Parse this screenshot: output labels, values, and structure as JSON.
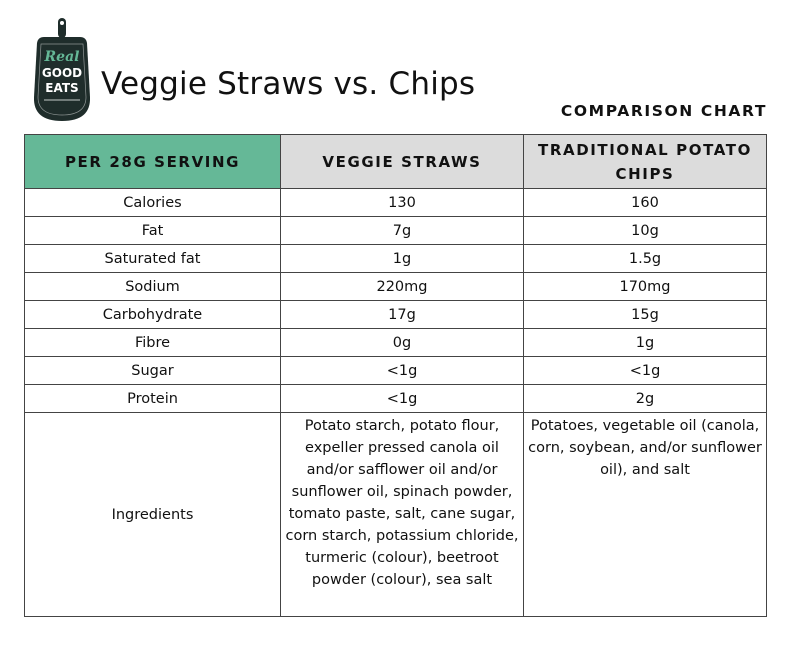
{
  "logo": {
    "text_lines": [
      "Real",
      "GOOD",
      "EATS"
    ],
    "colors": {
      "board": "#1f2d2b",
      "accent": "#65b897",
      "text": "#ffffff"
    }
  },
  "header": {
    "title": "Veggie Straws vs. Chips",
    "subtitle": "COMPARISON CHART"
  },
  "table": {
    "columns": [
      "PER 28G SERVING",
      "VEGGIE STRAWS",
      "TRADITIONAL POTATO CHIPS"
    ],
    "header_colors": {
      "first": "#65b897",
      "others": "#dcdcdc"
    },
    "rows": [
      {
        "label": "Calories",
        "veggie_straws": "130",
        "potato_chips": "160"
      },
      {
        "label": "Fat",
        "veggie_straws": "7g",
        "potato_chips": "10g"
      },
      {
        "label": "Saturated fat",
        "veggie_straws": "1g",
        "potato_chips": "1.5g"
      },
      {
        "label": "Sodium",
        "veggie_straws": "220mg",
        "potato_chips": "170mg"
      },
      {
        "label": "Carbohydrate",
        "veggie_straws": "17g",
        "potato_chips": "15g"
      },
      {
        "label": "Fibre",
        "veggie_straws": "0g",
        "potato_chips": "1g"
      },
      {
        "label": "Sugar",
        "veggie_straws": "<1g",
        "potato_chips": "<1g"
      },
      {
        "label": "Protein",
        "veggie_straws": "<1g",
        "potato_chips": "2g"
      }
    ],
    "ingredients": {
      "label": "Ingredients",
      "veggie_straws": "Potato starch, potato flour, expeller pressed canola oil and/or safflower oil and/or sunflower oil, spinach powder, tomato paste, salt, cane sugar, corn starch, potassium chloride, turmeric (colour), beetroot powder (colour), sea salt",
      "potato_chips": "Potatoes, vegetable oil (canola, corn, soybean, and/or sunflower oil), and salt"
    }
  }
}
